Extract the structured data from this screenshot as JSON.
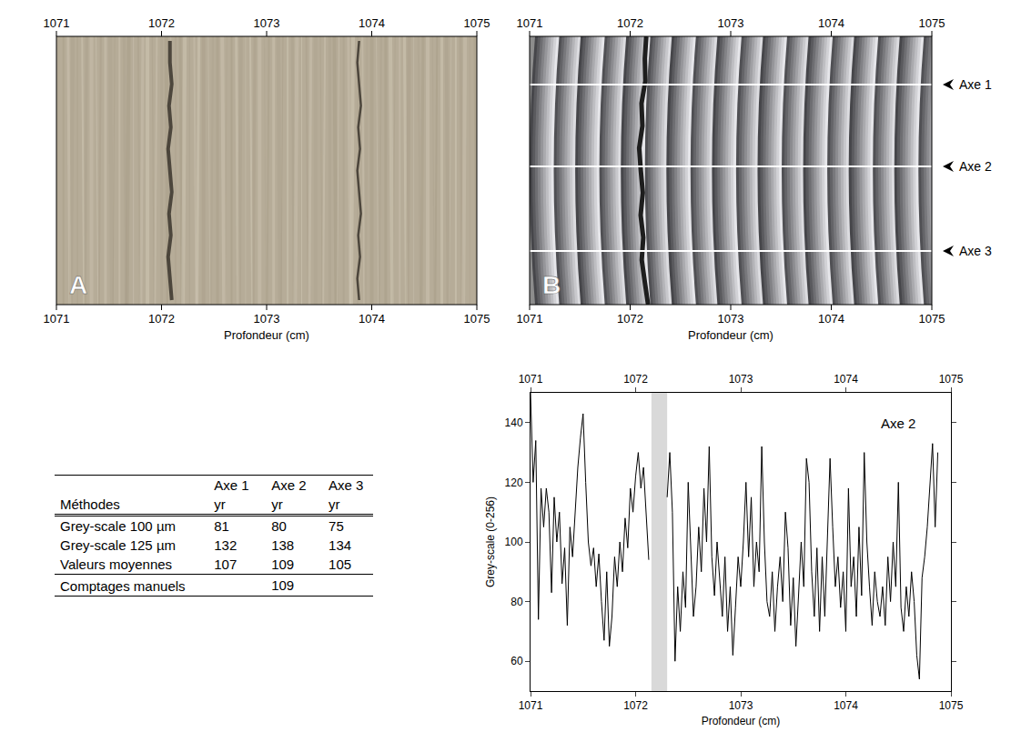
{
  "photos": [
    {
      "label": "A",
      "xlabel": "Profondeur (cm)",
      "xlim": [
        1071,
        1075
      ],
      "xticks": [
        1071,
        1072,
        1073,
        1074,
        1075
      ]
    },
    {
      "label": "B",
      "xlabel": "Profondeur (cm)",
      "xlim": [
        1071,
        1075
      ],
      "xticks": [
        1071,
        1072,
        1073,
        1074,
        1075
      ],
      "axes": [
        "Axe 1",
        "Axe 2",
        "Axe 3"
      ]
    }
  ],
  "table": {
    "first_header": "Méthodes",
    "columns": [
      {
        "name": "Axe 1",
        "unit": "yr"
      },
      {
        "name": "Axe 2",
        "unit": "yr"
      },
      {
        "name": "Axe 3",
        "unit": "yr"
      }
    ],
    "rows": [
      {
        "label": "Grey-scale 100 µm",
        "values": [
          81,
          80,
          75
        ]
      },
      {
        "label": "Grey-scale 125 µm",
        "values": [
          132,
          138,
          134
        ]
      },
      {
        "label": "Valeurs moyennes",
        "values": [
          107,
          109,
          105
        ]
      },
      {
        "label": "Comptages manuels",
        "values": [
          null,
          109,
          null
        ]
      }
    ]
  },
  "chart_data": {
    "type": "line",
    "annotation": "Axe 2",
    "xlabel": "Profondeur (cm)",
    "ylabel": "Grey-scale (0-256)",
    "color": "#000000",
    "xlim": [
      1071,
      1075
    ],
    "xticks": [
      1071,
      1072,
      1073,
      1074,
      1075
    ],
    "ylim": [
      50,
      150
    ],
    "yticks": [
      60,
      80,
      100,
      120,
      140
    ],
    "shaded": {
      "x": [
        1072.15,
        1072.3
      ],
      "color": "#d9d9d9"
    },
    "x": [
      1071,
      1071.025,
      1071.05,
      1071.075,
      1071.1,
      1071.125,
      1071.15,
      1071.175,
      1071.2,
      1071.225,
      1071.25,
      1071.275,
      1071.3,
      1071.325,
      1071.35,
      1071.375,
      1071.4,
      1071.425,
      1071.45,
      1071.475,
      1071.5,
      1071.525,
      1071.55,
      1071.575,
      1071.6,
      1071.625,
      1071.65,
      1071.675,
      1071.7,
      1071.725,
      1071.75,
      1071.775,
      1071.8,
      1071.825,
      1071.85,
      1071.875,
      1071.9,
      1071.925,
      1071.95,
      1071.975,
      1072,
      1072.025,
      1072.05,
      1072.075,
      1072.1,
      1072.125,
      1072.15,
      1072.175,
      1072.2,
      1072.225,
      1072.25,
      1072.275,
      1072.3,
      1072.325,
      1072.35,
      1072.375,
      1072.4,
      1072.425,
      1072.45,
      1072.475,
      1072.5,
      1072.525,
      1072.55,
      1072.575,
      1072.6,
      1072.625,
      1072.65,
      1072.675,
      1072.7,
      1072.725,
      1072.75,
      1072.775,
      1072.8,
      1072.825,
      1072.85,
      1072.875,
      1072.9,
      1072.925,
      1072.95,
      1072.975,
      1073,
      1073.025,
      1073.05,
      1073.075,
      1073.1,
      1073.125,
      1073.15,
      1073.175,
      1073.2,
      1073.225,
      1073.25,
      1073.275,
      1073.3,
      1073.325,
      1073.35,
      1073.375,
      1073.4,
      1073.425,
      1073.45,
      1073.475,
      1073.5,
      1073.525,
      1073.55,
      1073.575,
      1073.6,
      1073.625,
      1073.65,
      1073.675,
      1073.7,
      1073.725,
      1073.75,
      1073.775,
      1073.8,
      1073.825,
      1073.85,
      1073.875,
      1073.9,
      1073.925,
      1073.95,
      1073.975,
      1074,
      1074.025,
      1074.05,
      1074.075,
      1074.1,
      1074.125,
      1074.15,
      1074.175,
      1074.2,
      1074.225,
      1074.25,
      1074.275,
      1074.3,
      1074.325,
      1074.35,
      1074.375,
      1074.4,
      1074.425,
      1074.45,
      1074.475,
      1074.5,
      1074.525,
      1074.55,
      1074.575,
      1074.6,
      1074.625,
      1074.65,
      1074.675,
      1074.7,
      1074.725,
      1074.75,
      1074.775,
      1074.8,
      1074.825,
      1074.85,
      1074.875
    ],
    "values": [
      150,
      120,
      134,
      74,
      118,
      105,
      118,
      110,
      83,
      115,
      100,
      110,
      86,
      98,
      72,
      105,
      95,
      112,
      125,
      135,
      143,
      120,
      100,
      92,
      98,
      85,
      96,
      80,
      67,
      90,
      65,
      75,
      95,
      85,
      100,
      90,
      108,
      98,
      118,
      110,
      122,
      130,
      118,
      125,
      110,
      94,
      null,
      null,
      null,
      null,
      null,
      null,
      115,
      130,
      110,
      60,
      85,
      70,
      90,
      78,
      120,
      95,
      75,
      85,
      105,
      90,
      118,
      100,
      132,
      95,
      82,
      100,
      88,
      75,
      95,
      70,
      85,
      62,
      78,
      95,
      85,
      100,
      120,
      95,
      115,
      85,
      100,
      90,
      132,
      100,
      80,
      75,
      90,
      70,
      85,
      95,
      80,
      110,
      98,
      72,
      88,
      65,
      82,
      100,
      85,
      128,
      120,
      90,
      75,
      98,
      70,
      95,
      75,
      100,
      128,
      105,
      85,
      95,
      78,
      90,
      70,
      118,
      85,
      95,
      75,
      105,
      82,
      130,
      100,
      85,
      72,
      90,
      80,
      75,
      85,
      72,
      95,
      80,
      100,
      85,
      120,
      78,
      70,
      85,
      75,
      90,
      80,
      62,
      54,
      88,
      95,
      105,
      120,
      133,
      105,
      130
    ]
  }
}
